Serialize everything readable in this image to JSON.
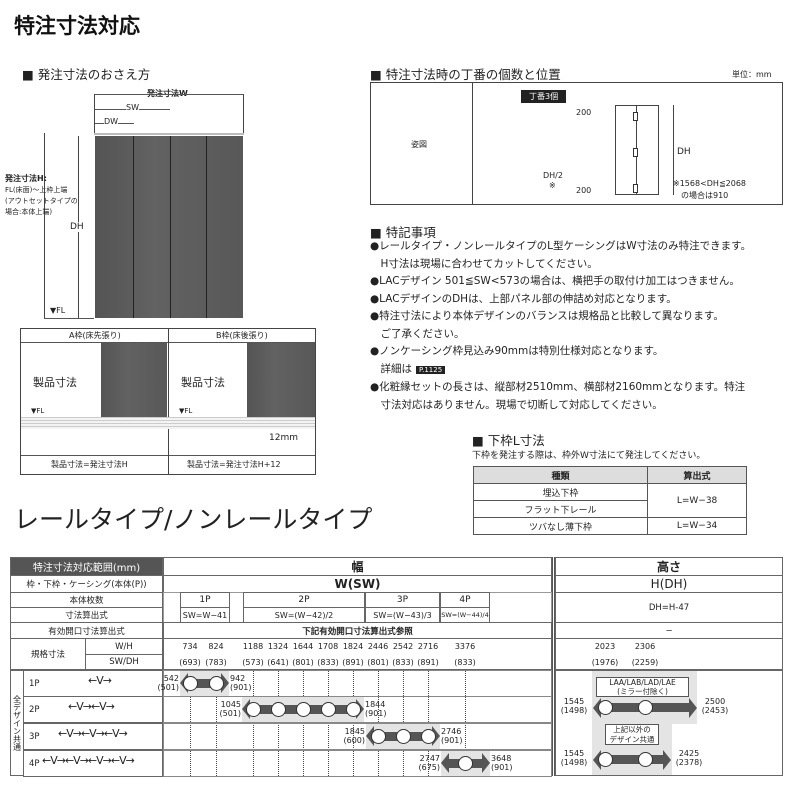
{
  "title": "特注寸法対応",
  "section_order": {
    "heading": "発注寸法のおさえ方",
    "order_w": "発注寸法W",
    "sw": "SW",
    "dw": "DW",
    "dh": "DH",
    "fl": "▼FL",
    "order_h_title": "発注寸法H:",
    "order_h_desc": [
      "FL(床面)～上枠上端",
      "(アウトセットタイプの",
      "場合:本体上端)"
    ],
    "frame_a": "A枠(床先張り)",
    "frame_b": "B枠(床後張り)",
    "product_size": "製品寸法",
    "mm12": "12mm",
    "formula_a": "製品寸法=発注寸法H",
    "formula_b": "製品寸法=発注寸法H+12"
  },
  "section_hinge": {
    "heading": "特注寸法時の丁番の個数と位置",
    "unit": "単位：mm",
    "row_label": "姿図",
    "badge": "丁番3個",
    "top": "200",
    "bottom": "200",
    "half": "DH/2",
    "mark": "※",
    "dh": "DH",
    "note": [
      "※1568<DH≦2068",
      "の場合は910"
    ]
  },
  "section_notes": {
    "heading": "特記事項",
    "lines": [
      "●レールタイプ・ノンレールタイプのL型ケーシングはW寸法のみ特注できます。",
      "　H寸法は現場に合わせてカットしてください。",
      "●LACデザイン 501≦SW<573の場合は、横把手の取付け加工はつきません。",
      "●LACデザインのDHは、上部パネル部の伸詰め対応となります。",
      "●特注寸法により本体デザインのバランスは規格品と比較して異なります。",
      "　ご了承ください。",
      "●ノンケーシング枠見込み90mmは特別仕様対応となります。",
      "　詳細は",
      "●化粧縁セットの長さは、縦部材2510mm、横部材2160mmとなります。特注",
      "　寸法対応はありません。現場で切断して対応してください。"
    ],
    "page_ref": "P.1125"
  },
  "section_lower": {
    "heading": "下枠L寸法",
    "desc": "下枠を発注する際は、枠外W寸法にて発注してください。",
    "headers": [
      "種類",
      "算出式"
    ],
    "rows": [
      [
        "埋込下枠",
        "L=W−38"
      ],
      [
        "フラット下レール",
        ""
      ],
      [
        "ツバなし薄下枠",
        "L=W−34"
      ]
    ]
  },
  "subtitle": "レールタイプ/ノンレールタイプ",
  "range_table": {
    "corner": "特注寸法対応範囲(mm)",
    "width_head": "幅",
    "height_head": "高さ",
    "row_labels": [
      "枠・下枠・ケーシング(本体(P))",
      "本体枚数",
      "寸法算出式",
      "有効開口寸法算出式",
      "規格寸法",
      "W/H",
      "SW/DH"
    ],
    "w_symbol": "W(SW)",
    "h_symbol": "H(DH)",
    "panels": [
      "1P",
      "2P",
      "3P",
      "4P"
    ],
    "formulas": [
      "SW=W−41",
      "SW=(W−42)/2",
      "SW=(W−43)/3",
      "SW=(W−44)/4"
    ],
    "h_formula": "DH=H-47",
    "opening": "下記有効開口寸法算出式参照",
    "h_opening": "−",
    "std_w": [
      "734",
      "824",
      "1188",
      "1324",
      "1644",
      "1708",
      "1824",
      "2446",
      "2542",
      "2716",
      "3376"
    ],
    "std_sw": [
      "(693)",
      "(783)",
      "(573)",
      "(641)",
      "(801)",
      "(833)",
      "(891)",
      "(801)",
      "(833)",
      "(891)",
      "(833)"
    ],
    "std_h": [
      "2023",
      "2306"
    ],
    "std_dh": [
      "(1976)",
      "(2259)"
    ],
    "side_label": "全デザイン共通",
    "rows": [
      {
        "label": "1P",
        "min": "542",
        "min_s": "(501)",
        "max": "942",
        "max_s": "(901)",
        "circles": [
          0,
          1
        ]
      },
      {
        "label": "2P",
        "min": "1045",
        "min_s": "(501)",
        "max": "1844",
        "max_s": "(901)",
        "circles": [
          2,
          3,
          4,
          5,
          6
        ]
      },
      {
        "label": "3P",
        "min": "1845",
        "min_s": "(600)",
        "max": "2746",
        "max_s": "(901)",
        "circles": [
          7,
          8,
          9
        ]
      },
      {
        "label": "4P",
        "min": "2747",
        "min_s": "(675)",
        "max": "3648",
        "max_s": "(901)",
        "circles": [
          10
        ]
      }
    ],
    "h_ranges": [
      {
        "box": [
          "LAA/LAB/LAD/LAE",
          "(ミラー付除く)"
        ],
        "min": "1545",
        "min_s": "(1498)",
        "max": "2500",
        "max_s": "(2453)"
      },
      {
        "box": [
          "上記以外の",
          "デザイン共通"
        ],
        "min": "1545",
        "min_s": "(1498)",
        "max": "2425",
        "max_s": "(2378)"
      }
    ]
  }
}
